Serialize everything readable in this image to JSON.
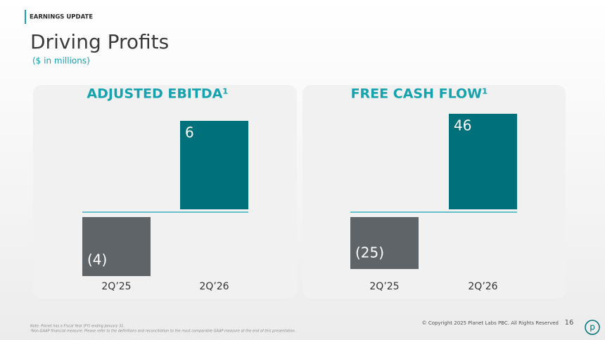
{
  "section": "EARNINGS UPDATE",
  "title": "Driving Profits",
  "subtitle": "($ in millions)",
  "chart_data": [
    {
      "type": "bar",
      "title": "ADJUSTED EBITDA¹",
      "categories": [
        "2Q’25",
        "2Q’26"
      ],
      "values": [
        -4,
        6
      ],
      "value_labels": [
        "(4)",
        "6"
      ],
      "colors": [
        "#5f6468",
        "#00717b"
      ]
    },
    {
      "type": "bar",
      "title": "FREE CASH FLOW¹",
      "categories": [
        "2Q’25",
        "2Q’26"
      ],
      "values": [
        -25,
        46
      ],
      "value_labels": [
        "(25)",
        "46"
      ],
      "colors": [
        "#5f6468",
        "#00717b"
      ]
    }
  ],
  "footnotes": [
    "Note: Planet has a Fiscal Year (FY) ending January 31.",
    "¹Non-GAAP financial measure. Please refer to the definitions and reconciliation to the most comparable GAAP measure at the end of this presentation."
  ],
  "copyright": "© Copyright 2025 Planet Labs PBC. All Rights Reserved",
  "page_number": "16",
  "logo": "p"
}
